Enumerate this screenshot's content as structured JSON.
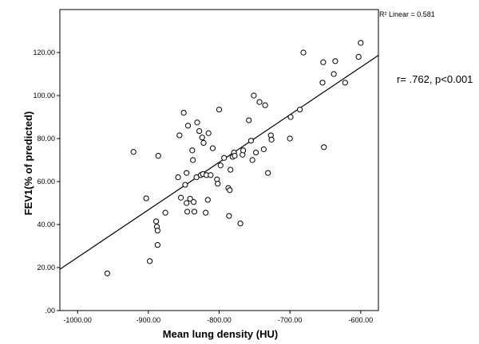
{
  "chart_data": {
    "type": "scatter",
    "title": "",
    "xlabel": "Mean lung density (HU)",
    "ylabel": "FEV1(% of predicted)",
    "xlim": [
      -1025,
      -575
    ],
    "ylim": [
      0,
      140
    ],
    "x_ticks": [
      -1000,
      -900,
      -800,
      -700,
      -600
    ],
    "x_tick_labels": [
      "-1000.00",
      "-900.00",
      "-800.00",
      "-700.00",
      "-600.00"
    ],
    "y_ticks": [
      0,
      20,
      40,
      60,
      80,
      100,
      120
    ],
    "y_tick_labels": [
      ".00",
      "20.00",
      "40.00",
      "60.00",
      "80.00",
      "100.00",
      "120.00"
    ],
    "grid": false,
    "fit_line": {
      "label": "R² Linear = 0.581",
      "x": [
        -1025,
        -575
      ],
      "y": [
        19.2,
        118.7
      ]
    },
    "annotation": "r= .762, p<0.001",
    "points": [
      [
        -958,
        17.3
      ],
      [
        -921,
        73.8
      ],
      [
        -903,
        52.2
      ],
      [
        -898,
        23.0
      ],
      [
        -889,
        41.5
      ],
      [
        -888,
        39.0
      ],
      [
        -887,
        37.2
      ],
      [
        -887,
        30.5
      ],
      [
        -886,
        72.0
      ],
      [
        -876,
        45.5
      ],
      [
        -858,
        62.0
      ],
      [
        -856,
        81.5
      ],
      [
        -854,
        52.5
      ],
      [
        -850,
        92.0
      ],
      [
        -848,
        58.5
      ],
      [
        -846,
        50.0
      ],
      [
        -846,
        64.0
      ],
      [
        -845,
        46.0
      ],
      [
        -844,
        86.0
      ],
      [
        -841,
        52.0
      ],
      [
        -838,
        74.5
      ],
      [
        -837,
        70.0
      ],
      [
        -836,
        50.5
      ],
      [
        -835,
        46.0
      ],
      [
        -832,
        62.0
      ],
      [
        -831,
        87.5
      ],
      [
        -828,
        83.5
      ],
      [
        -826,
        63.0
      ],
      [
        -824,
        80.5
      ],
      [
        -823,
        63.5
      ],
      [
        -822,
        78.0
      ],
      [
        -819,
        45.5
      ],
      [
        -818,
        63.0
      ],
      [
        -816,
        51.5
      ],
      [
        -815,
        82.5
      ],
      [
        -812,
        63.0
      ],
      [
        -809,
        75.5
      ],
      [
        -803,
        61.0
      ],
      [
        -802,
        59.0
      ],
      [
        -800,
        93.5
      ],
      [
        -798,
        67.5
      ],
      [
        -793,
        71.0
      ],
      [
        -787,
        57.0
      ],
      [
        -786,
        44.0
      ],
      [
        -785,
        56.0
      ],
      [
        -784,
        65.5
      ],
      [
        -781,
        71.5
      ],
      [
        -779,
        73.5
      ],
      [
        -778,
        72.0
      ],
      [
        -770,
        40.5
      ],
      [
        -767,
        72.5
      ],
      [
        -766,
        74.5
      ],
      [
        -758,
        88.5
      ],
      [
        -755,
        79.0
      ],
      [
        -753,
        70.0
      ],
      [
        -751,
        100.0
      ],
      [
        -748,
        73.5
      ],
      [
        -743,
        97.0
      ],
      [
        -737,
        75.0
      ],
      [
        -735,
        95.5
      ],
      [
        -731,
        64.0
      ],
      [
        -727,
        81.5
      ],
      [
        -726,
        79.5
      ],
      [
        -700,
        80.0
      ],
      [
        -699,
        90.0
      ],
      [
        -686,
        93.5
      ],
      [
        -681,
        120.0
      ],
      [
        -654,
        106.0
      ],
      [
        -653,
        115.5
      ],
      [
        -652,
        76.0
      ],
      [
        -638,
        110.0
      ],
      [
        -636,
        116.0
      ],
      [
        -622,
        106.0
      ],
      [
        -603,
        118.0
      ],
      [
        -600,
        124.5
      ]
    ]
  }
}
